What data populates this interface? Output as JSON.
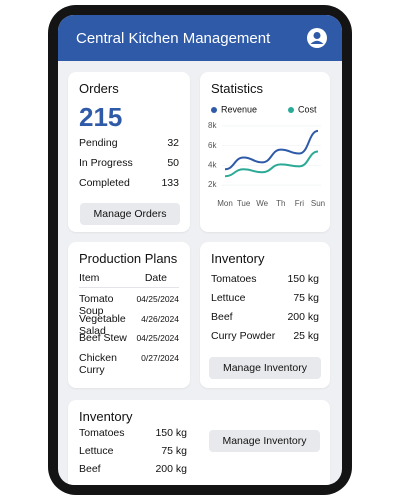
{
  "header": {
    "title": "Central Kitchen Management"
  },
  "orders": {
    "title": "Orders",
    "total": 215,
    "rows": [
      {
        "label": "Pending",
        "value": 32
      },
      {
        "label": "In Progress",
        "value": 50
      },
      {
        "label": "Completed",
        "value": 133
      }
    ],
    "button": "Manage Orders"
  },
  "statistics": {
    "title": "Statistics",
    "type": "line",
    "x": [
      "Mon",
      "Tue",
      "We",
      "Th",
      "Fri",
      "Sun"
    ],
    "series": [
      {
        "name": "Revenue",
        "color": "#2f5aa8",
        "values": [
          3600,
          4800,
          4300,
          5600,
          5200,
          7500
        ]
      },
      {
        "name": "Cost",
        "color": "#2aaa96",
        "values": [
          2900,
          3600,
          3300,
          4100,
          3900,
          5400
        ]
      }
    ],
    "ylim": [
      1500,
      8500
    ],
    "yticks": [
      {
        "value": 8000,
        "label": "8k"
      },
      {
        "value": 6000,
        "label": "6k"
      },
      {
        "value": 4000,
        "label": "4k"
      },
      {
        "value": 2000,
        "label": "2k"
      }
    ]
  },
  "production": {
    "title": "Production Plans",
    "columns": [
      "Item",
      "Date"
    ],
    "rows": [
      [
        "Tomato Soup",
        "04/25/2024"
      ],
      [
        "Vegetable Salad",
        "4/26/2024"
      ],
      [
        "Beef Stew",
        "04/25/2024"
      ],
      [
        "Chicken Curry",
        "0/27/2024"
      ]
    ]
  },
  "inventory": {
    "title": "Inventory",
    "rows": [
      [
        "Tomatoes",
        "150 kg"
      ],
      [
        "Lettuce",
        "75 kg"
      ],
      [
        "Beef",
        "200 kg"
      ],
      [
        "Curry Powder",
        "25 kg"
      ]
    ],
    "button": "Manage Inventory"
  },
  "inventory2": {
    "title": "Inventory",
    "rows": [
      [
        "Tomatoes",
        "150 kg"
      ],
      [
        "Lettuce",
        "75 kg"
      ],
      [
        "Beef",
        "200 kg"
      ]
    ],
    "button": "Manage Inventory"
  }
}
